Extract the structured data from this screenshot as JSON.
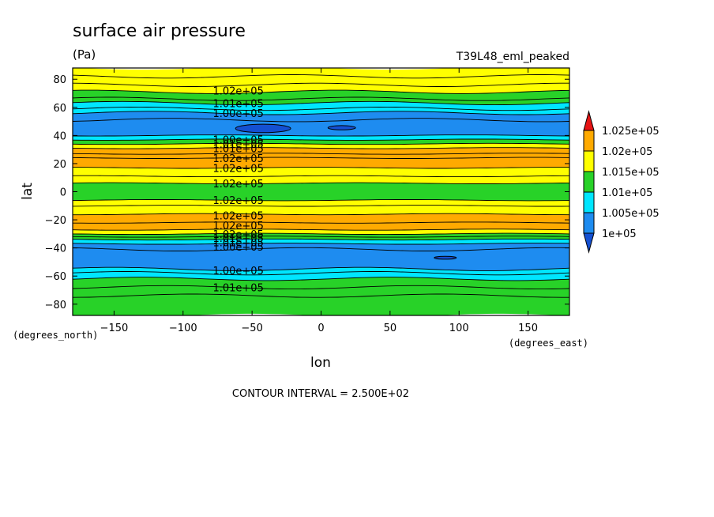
{
  "chart_data": {
    "type": "heatmap",
    "title": "surface air pressure",
    "units": "(Pa)",
    "run_label": "T39L48_eml_peaked",
    "xlabel": "lon",
    "ylabel": "lat",
    "xunits": "(degrees_east)",
    "yunits": "(degrees_north)",
    "xlim": [
      -180,
      180
    ],
    "ylim": [
      -88,
      88
    ],
    "x_ticks": [
      -150,
      -100,
      -50,
      0,
      50,
      100,
      150
    ],
    "x_tick_labels": [
      "−150",
      "−100",
      "−50",
      "0",
      "50",
      "100",
      "150"
    ],
    "y_ticks": [
      80,
      60,
      40,
      20,
      0,
      -20,
      -40,
      -60,
      -80
    ],
    "y_tick_labels": [
      "80",
      "60",
      "40",
      "20",
      "0",
      "−20",
      "−40",
      "−60",
      "−80"
    ],
    "contour_interval": "CONTOUR INTERVAL = 2.500E+02",
    "colorbar": {
      "levels": [
        100000,
        100500,
        101000,
        101500,
        102000,
        102500
      ],
      "labels": [
        "1e+05",
        "1.005e+05",
        "1.01e+05",
        "1.015e+05",
        "1.02e+05",
        "1.025e+05"
      ],
      "colors": [
        "#1e8cf0",
        "#00e6ff",
        "#28d228",
        "#ffff00",
        "#ffaa00",
        "#e61414"
      ]
    },
    "bands": [
      {
        "lat_from": 88,
        "lat_to": 76,
        "value": 101750
      },
      {
        "lat_from": 76,
        "lat_to": 71,
        "value": 101500
      },
      {
        "lat_from": 71,
        "lat_to": 63,
        "value": 101250
      },
      {
        "lat_from": 63,
        "lat_to": 56,
        "value": 100750
      },
      {
        "lat_from": 56,
        "lat_to": 40,
        "value": 100250
      },
      {
        "lat_from": 40,
        "lat_to": 37,
        "value": 100750
      },
      {
        "lat_from": 37,
        "lat_to": 34,
        "value": 101250
      },
      {
        "lat_from": 34,
        "lat_to": 31,
        "value": 101750
      },
      {
        "lat_from": 31,
        "lat_to": 27,
        "value": 102250
      },
      {
        "lat_from": 27,
        "lat_to": 17,
        "value": 102250
      },
      {
        "lat_from": 17,
        "lat_to": 11,
        "value": 101750
      },
      {
        "lat_from": 11,
        "lat_to": 6,
        "value": 101500
      },
      {
        "lat_from": 6,
        "lat_to": -6,
        "value": 101250
      },
      {
        "lat_from": -6,
        "lat_to": -10,
        "value": 101500
      },
      {
        "lat_from": -10,
        "lat_to": -16,
        "value": 101750
      },
      {
        "lat_from": -16,
        "lat_to": -27,
        "value": 102250
      },
      {
        "lat_from": -27,
        "lat_to": -30,
        "value": 101750
      },
      {
        "lat_from": -30,
        "lat_to": -34,
        "value": 101250
      },
      {
        "lat_from": -34,
        "lat_to": -37,
        "value": 100750
      },
      {
        "lat_from": -37,
        "lat_to": -55,
        "value": 100250
      },
      {
        "lat_from": -55,
        "lat_to": -62,
        "value": 100750
      },
      {
        "lat_from": -62,
        "lat_to": -74,
        "value": 101250
      },
      {
        "lat_from": -74,
        "lat_to": -88,
        "value": 101250
      }
    ],
    "contour_lats": [
      82,
      76,
      71,
      66,
      63,
      59,
      56,
      51,
      40,
      37,
      34,
      31,
      27,
      24,
      17,
      11,
      6,
      -6,
      -10,
      -16,
      -22,
      -27,
      -30,
      -32,
      -34,
      -37,
      -41,
      -55,
      -58,
      -62,
      -68,
      -74
    ],
    "low_cells": [
      {
        "lon": -42,
        "lat": 45,
        "dlon": 20,
        "dlat": 3,
        "value": 99750
      },
      {
        "lon": 15,
        "lat": 45.5,
        "dlon": 10,
        "dlat": 1.5,
        "value": 99750
      },
      {
        "lon": 90,
        "lat": -47,
        "dlon": 8,
        "dlat": 1,
        "value": 99750
      }
    ],
    "contour_labels": [
      {
        "text": "1.02e+05",
        "lon": -60,
        "lat": 72
      },
      {
        "text": "1.01e+05",
        "lon": -60,
        "lat": 63
      },
      {
        "text": "1.00e+05",
        "lon": -60,
        "lat": 56
      },
      {
        "text": "1.00e+05",
        "lon": -60,
        "lat": 37
      },
      {
        "text": "1.01e+05",
        "lon": -60,
        "lat": 34
      },
      {
        "text": "1.01e+05",
        "lon": -60,
        "lat": 31
      },
      {
        "text": "1.02e+05",
        "lon": -60,
        "lat": 24
      },
      {
        "text": "1.02e+05",
        "lon": -60,
        "lat": 17
      },
      {
        "text": "1.02e+05",
        "lon": -60,
        "lat": 6
      },
      {
        "text": "1.02e+05",
        "lon": -60,
        "lat": -6
      },
      {
        "text": "1.02e+05",
        "lon": -60,
        "lat": -17
      },
      {
        "text": "1.02e+05",
        "lon": -60,
        "lat": -24
      },
      {
        "text": "1.02e+05",
        "lon": -60,
        "lat": -30
      },
      {
        "text": "1.01e+05",
        "lon": -60,
        "lat": -33
      },
      {
        "text": "1.01e+05",
        "lon": -60,
        "lat": -36
      },
      {
        "text": "1.00e+05",
        "lon": -60,
        "lat": -39
      },
      {
        "text": "1.00e+05",
        "lon": -60,
        "lat": -56
      },
      {
        "text": "1.01e+05",
        "lon": -60,
        "lat": -68
      }
    ],
    "grid": false
  }
}
